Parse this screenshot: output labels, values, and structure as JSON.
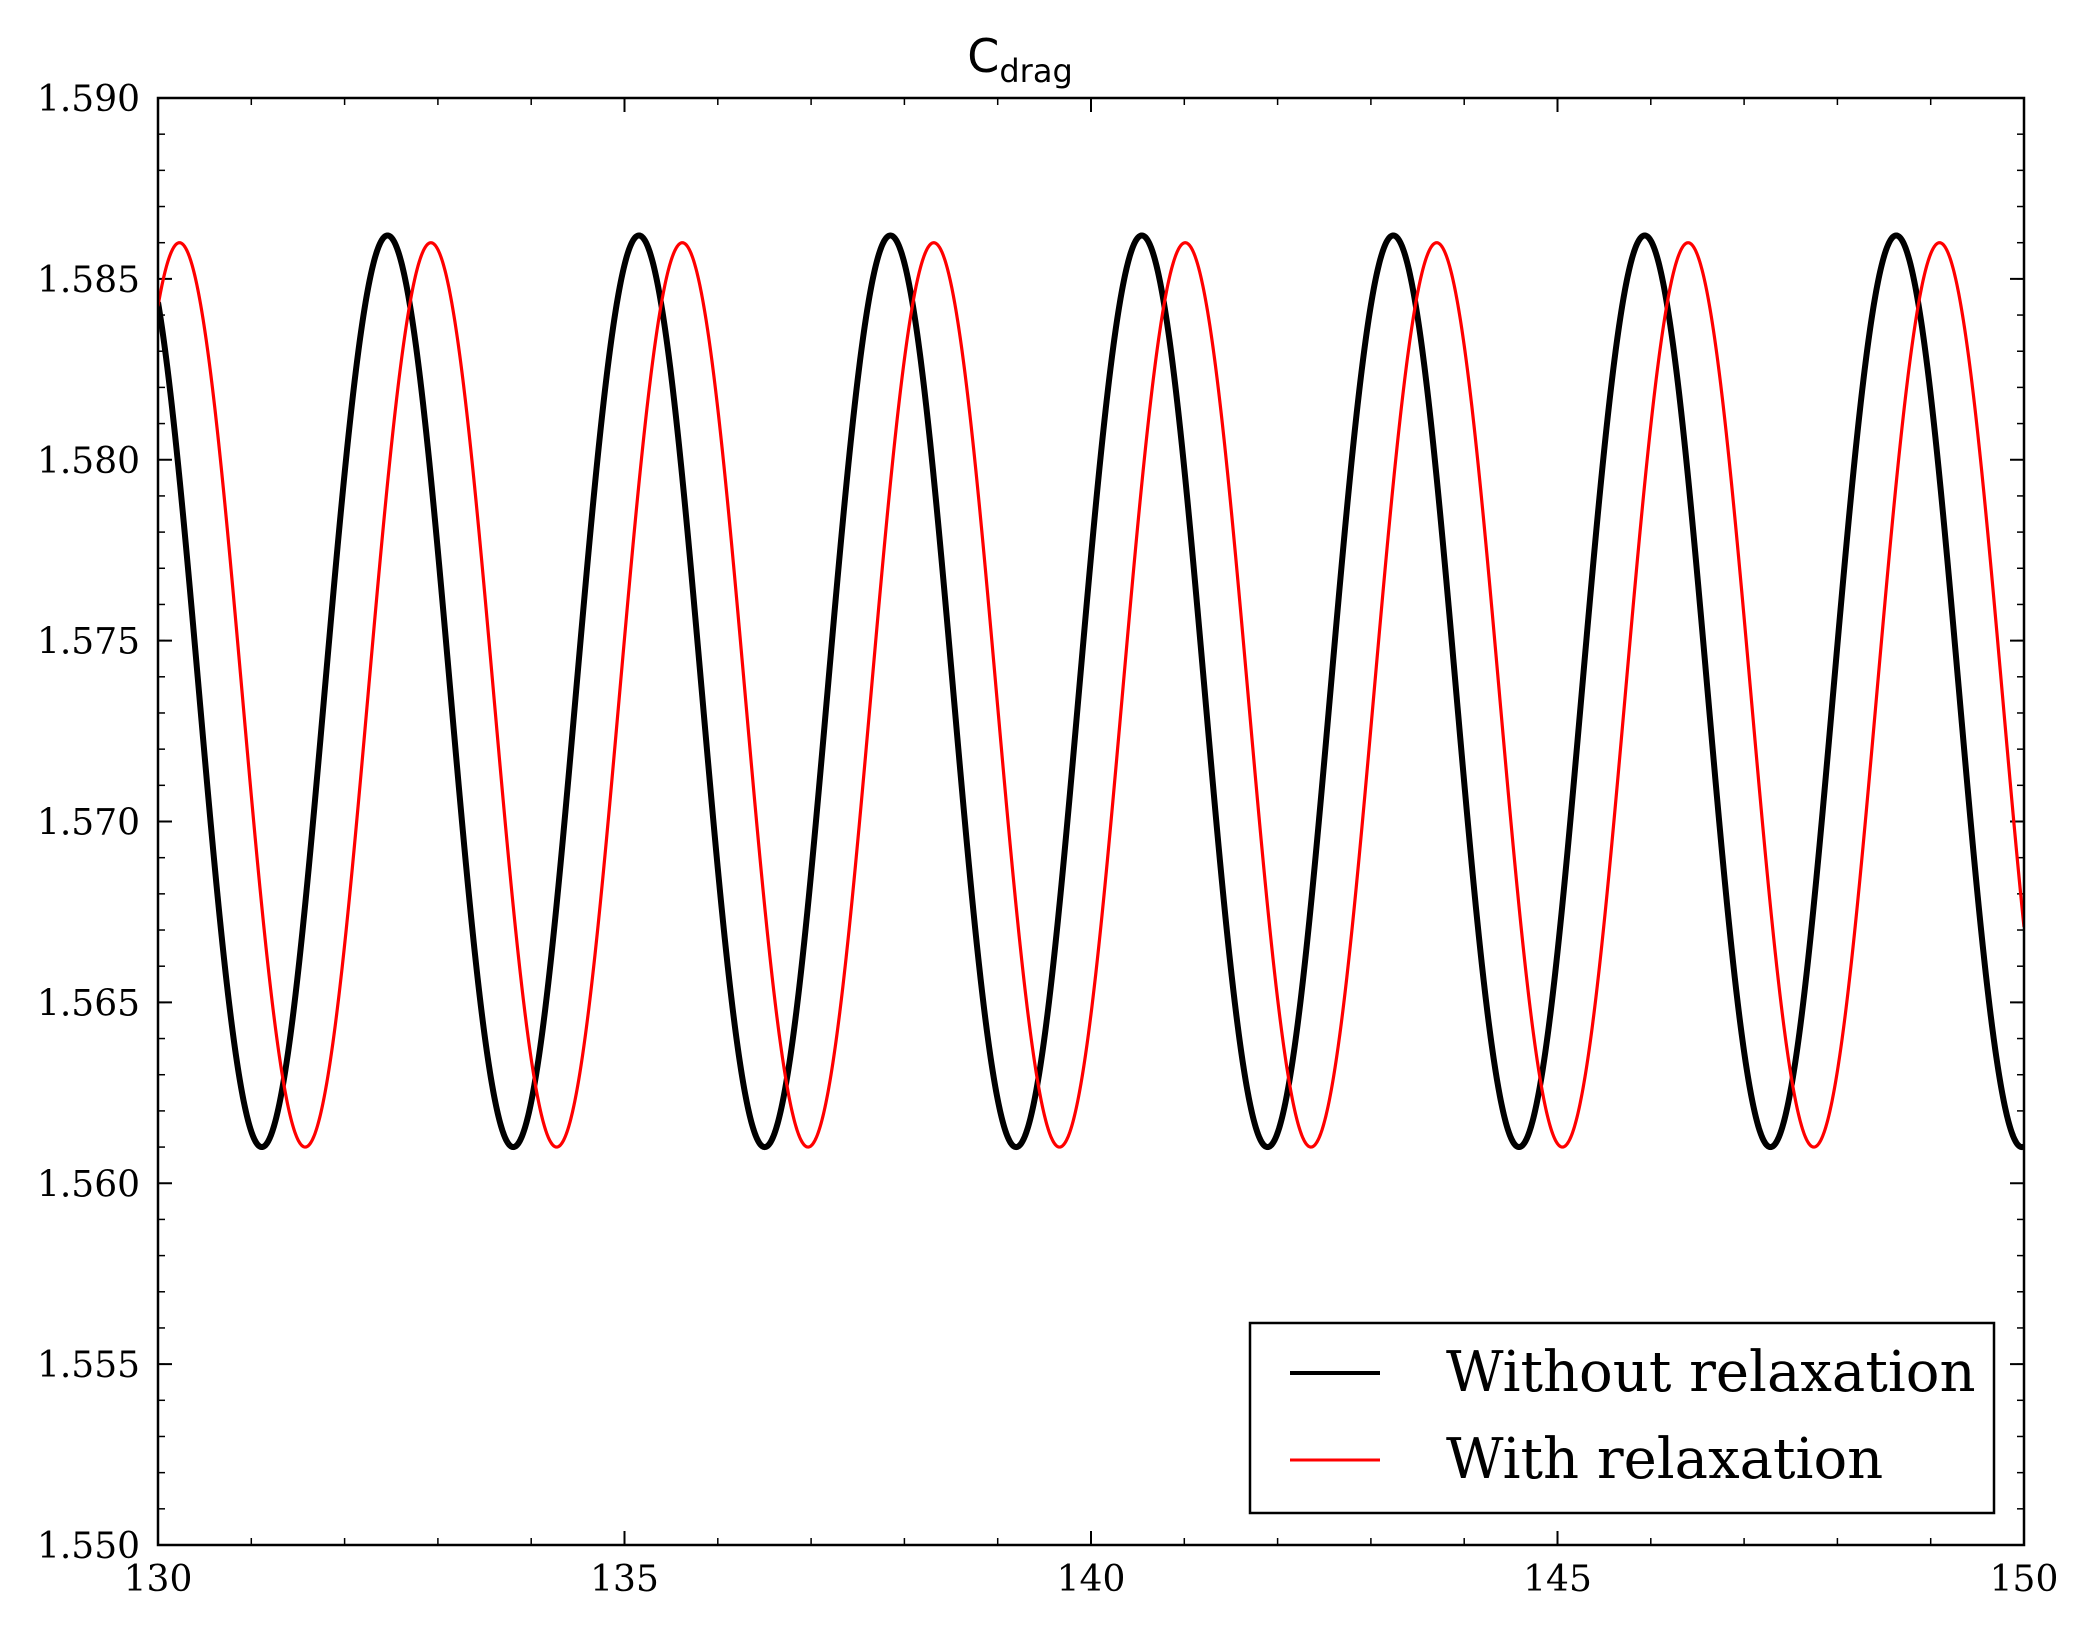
{
  "chart_data": {
    "type": "line",
    "title": {
      "main": "C",
      "subscript": "drag"
    },
    "xlabel": "",
    "ylabel": "",
    "xlim": [
      130,
      150
    ],
    "ylim": [
      1.55,
      1.59
    ],
    "x_major_ticks": [
      130,
      135,
      140,
      145,
      150
    ],
    "x_tick_labels": [
      "130",
      "135",
      "140",
      "145",
      "150"
    ],
    "x_minor_step": 1,
    "y_major_ticks": [
      1.55,
      1.555,
      1.56,
      1.565,
      1.57,
      1.575,
      1.58,
      1.585,
      1.59
    ],
    "y_tick_labels": [
      "1.550",
      "1.555",
      "1.560",
      "1.565",
      "1.570",
      "1.575",
      "1.580",
      "1.585",
      "1.590"
    ],
    "y_minor_step": 0.001,
    "grid": false,
    "legend_position": "bottom-right",
    "series": [
      {
        "name": "Without relaxation",
        "color": "#000000",
        "style": "thick",
        "mean": 1.5736,
        "amplitude": 0.0126,
        "period": 2.695,
        "first_peak_x": 132.46,
        "x_start": 130,
        "x_end": 150
      },
      {
        "name": "With relaxation",
        "color": "#ff0000",
        "style": "thin",
        "mean": 1.5735,
        "amplitude": 0.0125,
        "period": 2.695,
        "first_peak_x": 130.23,
        "x_start": 130,
        "x_end": 150
      }
    ]
  }
}
